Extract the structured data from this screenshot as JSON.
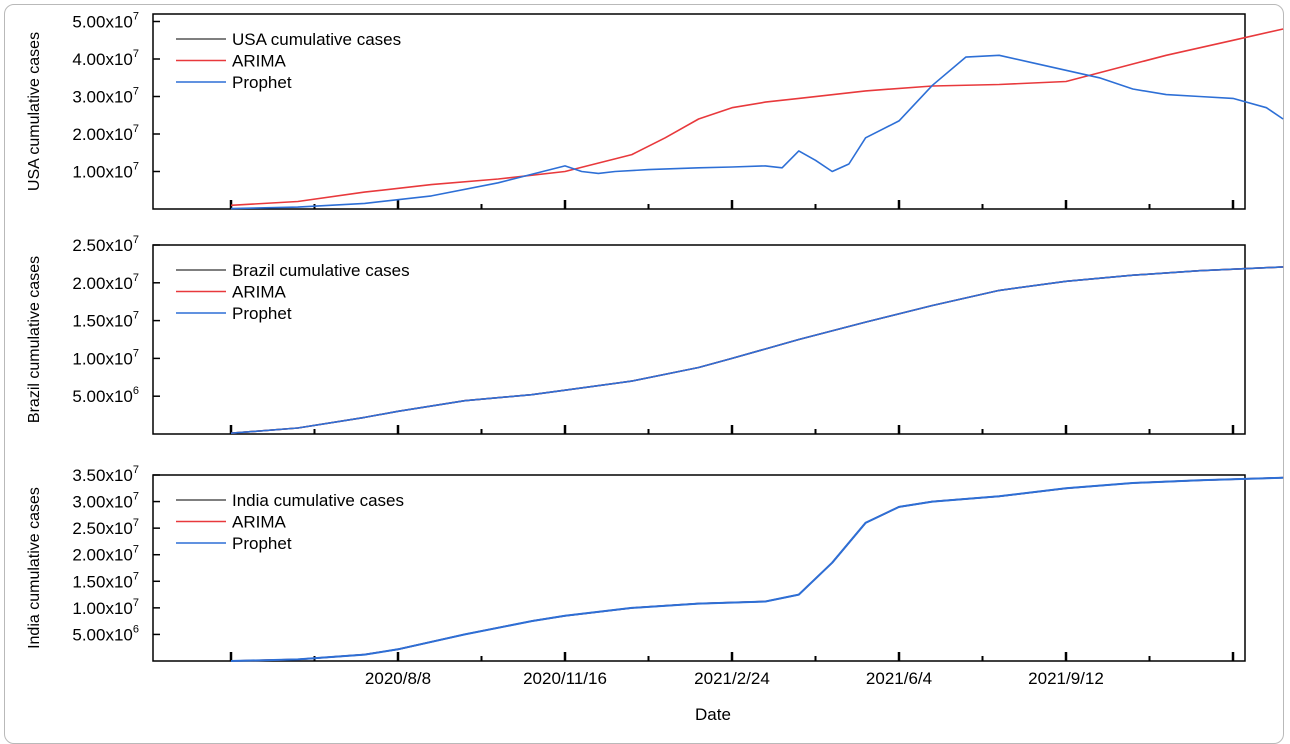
{
  "figure": {
    "xlabel": "Date",
    "x_tick_labels": [
      "2020/8/8",
      "2020/11/16",
      "2021/2/24",
      "2021/6/4",
      "2021/9/12"
    ],
    "colors": {
      "actual": "#333333",
      "arima": "#e8393c",
      "prophet": "#2d6fd6"
    }
  },
  "chart_data": [
    {
      "type": "line",
      "ylabel": "USA cumulative cases",
      "x_unit": "days since 2020/8/8",
      "xlim": [
        -100,
        550
      ],
      "ylim": [
        0,
        52000000
      ],
      "yticks": [
        10000000,
        20000000,
        30000000,
        40000000,
        50000000
      ],
      "ytick_labels": [
        {
          "m": "1.00x10",
          "e": "7"
        },
        {
          "m": "2.00x10",
          "e": "7"
        },
        {
          "m": "3.00x10",
          "e": "7"
        },
        {
          "m": "4.00x10",
          "e": "7"
        },
        {
          "m": "5.00x10",
          "e": "7"
        }
      ],
      "legend": [
        "USA cumulative cases",
        "ARIMA",
        "Prophet"
      ],
      "series": [
        {
          "name": "USA cumulative cases",
          "color": "#333333",
          "x": [],
          "y": []
        },
        {
          "name": "ARIMA",
          "color": "#e8393c",
          "x": [
            -100,
            -60,
            -20,
            20,
            60,
            100,
            140,
            160,
            180,
            200,
            220,
            240,
            280,
            320,
            360,
            400,
            460,
            500,
            530
          ],
          "y": [
            1000000,
            2000000,
            4500000,
            6500000,
            8000000,
            10000000,
            14500000,
            19000000,
            24000000,
            27000000,
            28500000,
            29500000,
            31500000,
            32800000,
            33200000,
            34000000,
            41000000,
            45000000,
            48000000
          ]
        },
        {
          "name": "Prophet",
          "color": "#2d6fd6",
          "x": [
            -100,
            -60,
            -20,
            20,
            60,
            100,
            110,
            120,
            130,
            150,
            180,
            200,
            220,
            230,
            240,
            250,
            260,
            270,
            280,
            300,
            320,
            340,
            360,
            380,
            400,
            420,
            440,
            460,
            480,
            500,
            520,
            530
          ],
          "y": [
            100000,
            500000,
            1500000,
            3500000,
            7000000,
            11500000,
            10000000,
            9500000,
            10000000,
            10500000,
            11000000,
            11200000,
            11500000,
            11000000,
            15500000,
            13000000,
            10000000,
            12000000,
            19000000,
            23500000,
            33000000,
            40500000,
            41000000,
            39000000,
            37000000,
            35000000,
            32000000,
            30500000,
            30000000,
            29500000,
            27000000,
            24000000
          ]
        }
      ]
    },
    {
      "type": "line",
      "ylabel": "Brazil cumulative cases",
      "x_unit": "days since 2020/8/8",
      "xlim": [
        -100,
        550
      ],
      "ylim": [
        0,
        25000000
      ],
      "yticks": [
        5000000,
        10000000,
        15000000,
        20000000,
        25000000
      ],
      "ytick_labels": [
        {
          "m": "5.00x10",
          "e": "6"
        },
        {
          "m": "1.00x10",
          "e": "7"
        },
        {
          "m": "1.50x10",
          "e": "7"
        },
        {
          "m": "2.00x10",
          "e": "7"
        },
        {
          "m": "2.50x10",
          "e": "7"
        }
      ],
      "legend": [
        "Brazil cumulative cases",
        "ARIMA",
        "Prophet"
      ],
      "series": [
        {
          "name": "Brazil cumulative cases",
          "color": "#333333",
          "x": [
            -100,
            -60,
            -20,
            0,
            40,
            80,
            100,
            140,
            180,
            200,
            240,
            280,
            320,
            360,
            400,
            440,
            480,
            520,
            530
          ],
          "y": [
            100000,
            800000,
            2200000,
            3000000,
            4400000,
            5200000,
            5800000,
            7000000,
            8800000,
            10000000,
            12500000,
            14800000,
            17000000,
            19000000,
            20200000,
            21000000,
            21600000,
            22000000,
            22100000
          ]
        },
        {
          "name": "ARIMA",
          "color": "#e8393c",
          "x": [
            -100,
            -60,
            -20,
            0,
            40,
            80,
            100,
            140,
            180,
            200,
            240,
            280,
            320,
            360,
            400,
            440,
            480,
            520,
            530
          ],
          "y": [
            100000,
            800000,
            2200000,
            3000000,
            4400000,
            5200000,
            5800000,
            7000000,
            8800000,
            10000000,
            12500000,
            14800000,
            17000000,
            19000000,
            20200000,
            21000000,
            21600000,
            22000000,
            22100000
          ]
        },
        {
          "name": "Prophet",
          "color": "#2d6fd6",
          "x": [
            -100,
            -60,
            -20,
            0,
            40,
            80,
            100,
            140,
            180,
            200,
            240,
            280,
            320,
            360,
            400,
            440,
            480,
            520,
            530
          ],
          "y": [
            100000,
            800000,
            2200000,
            3000000,
            4400000,
            5200000,
            5800000,
            7000000,
            8800000,
            10000000,
            12500000,
            14800000,
            17000000,
            19000000,
            20200000,
            21000000,
            21600000,
            22000000,
            22100000
          ]
        }
      ]
    },
    {
      "type": "line",
      "ylabel": "India cumulative cases",
      "x_unit": "days since 2020/8/8",
      "xlim": [
        -100,
        550
      ],
      "ylim": [
        0,
        35000000
      ],
      "yticks": [
        5000000,
        10000000,
        15000000,
        20000000,
        25000000,
        30000000,
        35000000
      ],
      "ytick_labels": [
        {
          "m": "5.00x10",
          "e": "6"
        },
        {
          "m": "1.00x10",
          "e": "7"
        },
        {
          "m": "1.50x10",
          "e": "7"
        },
        {
          "m": "2.00x10",
          "e": "7"
        },
        {
          "m": "2.50x10",
          "e": "7"
        },
        {
          "m": "3.00x10",
          "e": "7"
        },
        {
          "m": "3.50x10",
          "e": "7"
        }
      ],
      "legend": [
        "India cumulative cases",
        "ARIMA",
        "Prophet"
      ],
      "series": [
        {
          "name": "India cumulative cases",
          "color": "#333333",
          "x": [
            -100,
            -60,
            -20,
            0,
            40,
            80,
            100,
            140,
            180,
            220,
            240,
            260,
            280,
            300,
            320,
            360,
            400,
            440,
            480,
            520,
            530
          ],
          "y": [
            0,
            300000,
            1200000,
            2200000,
            5000000,
            7500000,
            8500000,
            10000000,
            10800000,
            11200000,
            12500000,
            18500000,
            26000000,
            29000000,
            30000000,
            31000000,
            32500000,
            33500000,
            34000000,
            34400000,
            34500000
          ]
        },
        {
          "name": "ARIMA",
          "color": "#e8393c",
          "x": [
            -100,
            -60,
            -20,
            0,
            40,
            80,
            100,
            140,
            180,
            220,
            240,
            260,
            280,
            300,
            320,
            360,
            400,
            440,
            480,
            520,
            530
          ],
          "y": [
            0,
            300000,
            1200000,
            2200000,
            5000000,
            7500000,
            8500000,
            10000000,
            10800000,
            11200000,
            12500000,
            18500000,
            26000000,
            29000000,
            30000000,
            31000000,
            32500000,
            33500000,
            34000000,
            34400000,
            34500000
          ]
        },
        {
          "name": "Prophet",
          "color": "#2d6fd6",
          "x": [
            -100,
            -60,
            -20,
            0,
            40,
            80,
            100,
            140,
            180,
            220,
            240,
            260,
            280,
            300,
            320,
            360,
            400,
            440,
            480,
            520,
            530
          ],
          "y": [
            0,
            300000,
            1200000,
            2200000,
            5000000,
            7500000,
            8500000,
            10000000,
            10800000,
            11200000,
            12500000,
            18500000,
            26000000,
            29000000,
            30000000,
            31000000,
            32500000,
            33500000,
            34000000,
            34400000,
            34500000
          ]
        }
      ]
    }
  ]
}
